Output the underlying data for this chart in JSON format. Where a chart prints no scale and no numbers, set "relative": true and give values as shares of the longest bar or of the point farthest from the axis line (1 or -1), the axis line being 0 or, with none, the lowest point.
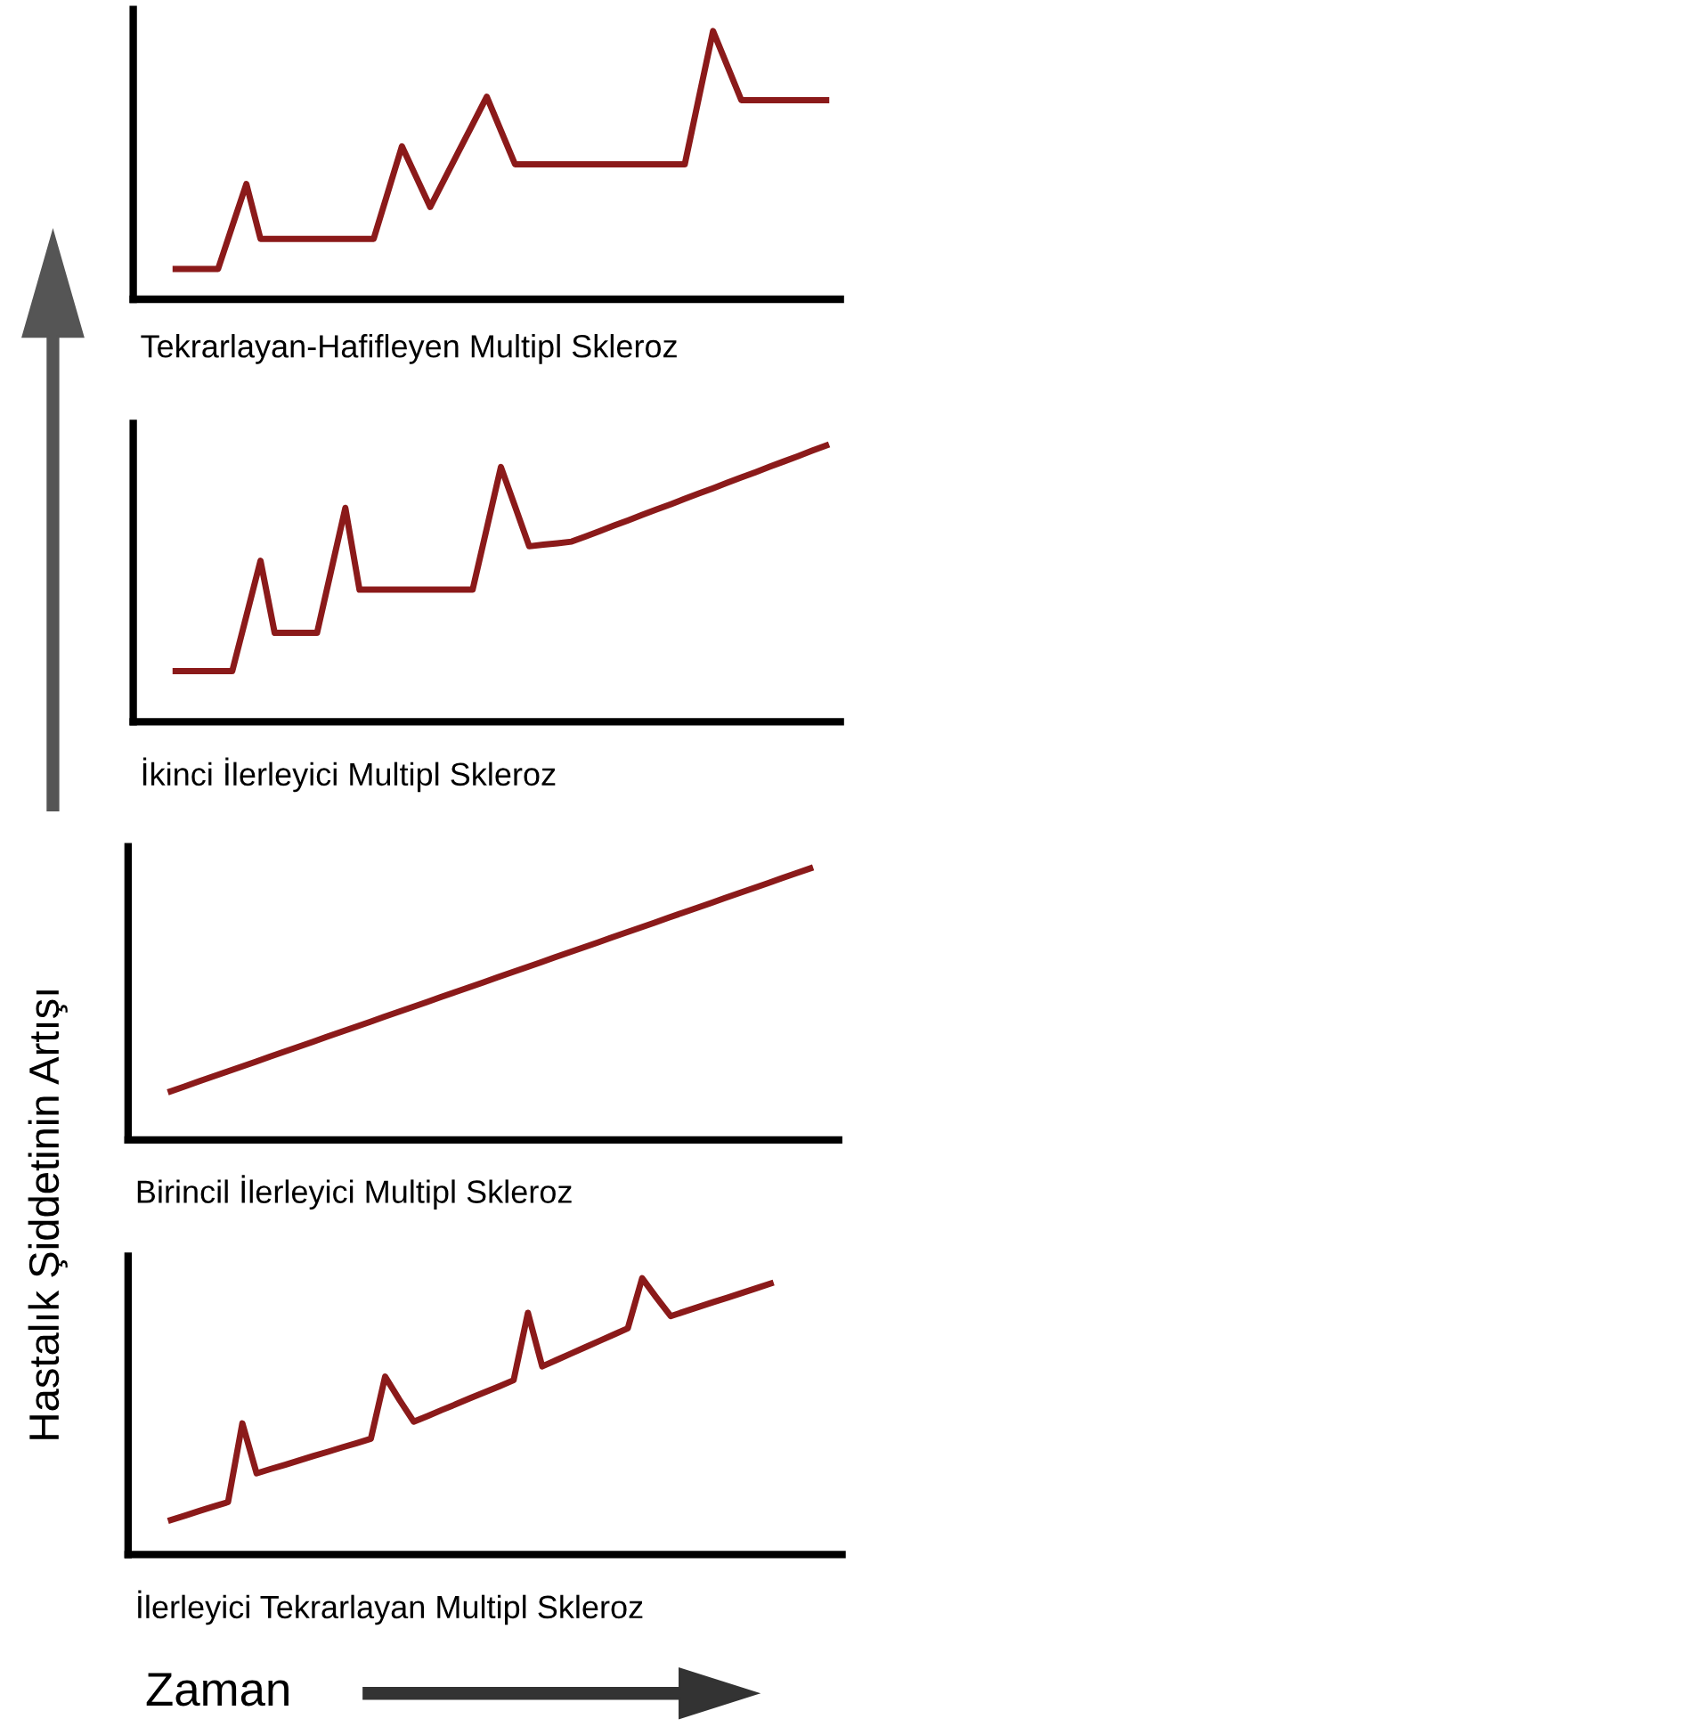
{
  "chart_data": [
    {
      "type": "line",
      "title": "Tekrarlayan-Hafifleyen Multipl Skleroz",
      "relative": true,
      "categories": [
        null,
        null,
        null,
        null,
        null,
        null,
        null,
        null,
        null,
        null,
        null,
        null,
        null,
        null,
        null,
        null,
        null,
        null,
        null,
        null,
        null,
        null,
        null,
        null,
        null,
        null,
        null,
        null,
        null,
        null,
        null,
        null,
        null,
        null,
        null,
        null,
        null,
        null,
        null,
        null,
        null,
        null,
        null,
        null,
        null,
        null,
        null,
        null,
        null,
        null,
        null
      ],
      "series": [
        {
          "color": "#8b1a1a",
          "values": [
            null,
            null,
            null,
            0.113,
            0.113,
            0.113,
            0.113,
            0.272,
            0.43,
            0.225,
            0.225,
            0.225,
            0.225,
            0.225,
            0.225,
            0.225,
            0.225,
            0.225,
            0.398,
            0.57,
            0.457,
            0.344,
            0.447,
            0.55,
            0.652,
            0.755,
            0.629,
            0.503,
            0.503,
            0.503,
            0.503,
            0.503,
            0.503,
            0.503,
            0.503,
            0.503,
            0.503,
            0.503,
            0.503,
            0.503,
            0.752,
            1,
            0.871,
            0.742,
            0.742,
            0.742,
            0.742,
            0.742,
            0.742,
            0.742,
            null
          ]
        }
      ]
    },
    {
      "type": "line",
      "title": "İkinci İlerleyici Multipl Skleroz",
      "relative": true,
      "categories": [
        null,
        null,
        null,
        null,
        null,
        null,
        null,
        null,
        null,
        null,
        null,
        null,
        null,
        null,
        null,
        null,
        null,
        null,
        null,
        null,
        null,
        null,
        null,
        null,
        null,
        null,
        null,
        null,
        null,
        null,
        null,
        null,
        null,
        null,
        null,
        null,
        null,
        null,
        null,
        null,
        null,
        null,
        null,
        null,
        null,
        null,
        null,
        null,
        null,
        null,
        null
      ],
      "series": [
        {
          "color": "#8b1a1a",
          "values": [
            null,
            null,
            null,
            0.183,
            0.183,
            0.183,
            0.183,
            0.183,
            0.383,
            0.583,
            0.322,
            0.322,
            0.322,
            0.322,
            0.548,
            0.774,
            0.478,
            0.478,
            0.478,
            0.478,
            0.478,
            0.478,
            0.478,
            0.478,
            0.478,
            0.7,
            0.922,
            0.779,
            0.635,
            0.641,
            0.646,
            0.652,
            0.671,
            0.69,
            0.71,
            0.729,
            0.749,
            0.768,
            0.787,
            0.807,
            0.826,
            0.845,
            0.865,
            0.884,
            0.903,
            0.923,
            0.942,
            0.961,
            0.981,
            1,
            null
          ]
        }
      ]
    },
    {
      "type": "line",
      "title": "Birincil İlerleyici Multipl Skleroz",
      "relative": true,
      "categories": [
        null,
        null,
        null,
        null,
        null,
        null,
        null,
        null,
        null,
        null,
        null,
        null,
        null,
        null,
        null,
        null,
        null,
        null,
        null,
        null,
        null,
        null,
        null,
        null,
        null,
        null,
        null,
        null,
        null,
        null,
        null,
        null,
        null,
        null,
        null,
        null,
        null,
        null,
        null,
        null,
        null,
        null,
        null,
        null,
        null,
        null,
        null,
        null,
        null,
        null,
        null
      ],
      "series": [
        {
          "color": "#8b1a1a",
          "values": [
            null,
            null,
            null,
            0.179,
            0.197,
            0.216,
            0.234,
            0.252,
            0.27,
            0.288,
            0.307,
            0.325,
            0.343,
            0.361,
            0.38,
            0.398,
            0.416,
            0.434,
            0.453,
            0.471,
            0.489,
            0.507,
            0.526,
            0.544,
            0.562,
            0.58,
            0.599,
            0.617,
            0.635,
            0.653,
            0.672,
            0.69,
            0.708,
            0.726,
            0.745,
            0.763,
            0.781,
            0.799,
            0.818,
            0.836,
            0.854,
            0.872,
            0.891,
            0.909,
            0.927,
            0.945,
            0.964,
            0.982,
            1,
            null,
            null
          ]
        }
      ]
    },
    {
      "type": "line",
      "title": "İlerleyici Tekrarlayan Multipl Skleroz",
      "xlabel": "Zaman",
      "relative": true,
      "categories": [
        null,
        null,
        null,
        null,
        null,
        null,
        null,
        null,
        null,
        null,
        null,
        null,
        null,
        null,
        null,
        null,
        null,
        null,
        null,
        null,
        null,
        null,
        null,
        null,
        null,
        null,
        null,
        null,
        null,
        null,
        null,
        null,
        null,
        null,
        null,
        null,
        null,
        null,
        null,
        null,
        null,
        null,
        null,
        null,
        null,
        null,
        null,
        null,
        null,
        null,
        null
      ],
      "series": [
        {
          "color": "#8b1a1a",
          "values": [
            null,
            null,
            null,
            0.125,
            0.141,
            0.158,
            0.174,
            0.19,
            0.475,
            0.294,
            0.31,
            0.325,
            0.341,
            0.357,
            0.372,
            0.388,
            0.403,
            0.419,
            0.644,
            0.56,
            0.481,
            0.502,
            0.524,
            0.545,
            0.567,
            0.588,
            0.609,
            0.631,
            0.875,
            0.681,
            0.704,
            0.727,
            0.75,
            0.773,
            0.796,
            0.819,
            1,
            0.93,
            0.863,
            0.88,
            0.897,
            0.914,
            0.93,
            0.947,
            0.964,
            0.981,
            null,
            null,
            null,
            null,
            null
          ]
        }
      ]
    },
    {
      "type": "other",
      "ylabel": "Hastalık Şiddetinin Artışı"
    }
  ]
}
